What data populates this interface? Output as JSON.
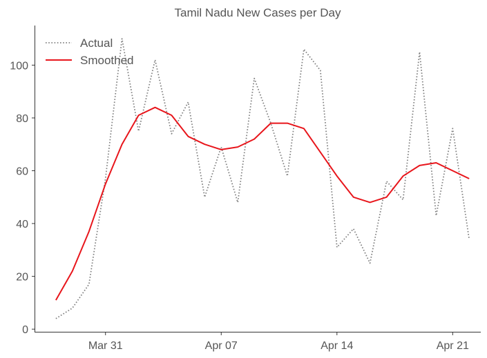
{
  "chart_data": {
    "type": "line",
    "title": "Tamil Nadu New Cases per Day",
    "xlabel": "",
    "ylabel": "",
    "x": [
      "Mar 28",
      "Mar 29",
      "Mar 30",
      "Mar 31",
      "Apr 01",
      "Apr 02",
      "Apr 03",
      "Apr 04",
      "Apr 05",
      "Apr 06",
      "Apr 07",
      "Apr 08",
      "Apr 09",
      "Apr 10",
      "Apr 11",
      "Apr 12",
      "Apr 13",
      "Apr 14",
      "Apr 15",
      "Apr 16",
      "Apr 17",
      "Apr 18",
      "Apr 19",
      "Apr 20",
      "Apr 21",
      "Apr 22"
    ],
    "xticks": [
      {
        "label": "Mar 31",
        "index": 3
      },
      {
        "label": "Apr 07",
        "index": 10
      },
      {
        "label": "Apr 14",
        "index": 17
      },
      {
        "label": "Apr 21",
        "index": 24
      }
    ],
    "yticks": [
      0,
      20,
      40,
      60,
      80,
      100
    ],
    "ylim": [
      -1,
      115
    ],
    "xlim": [
      -1.25,
      25.7
    ],
    "grid": false,
    "legend_position": "top-left",
    "series": [
      {
        "name": "Actual",
        "style": "dotted",
        "color": "#808080",
        "values": [
          4,
          8,
          17,
          57,
          110,
          75,
          102,
          74,
          86,
          50,
          69,
          48,
          95,
          78,
          58,
          106,
          98,
          31,
          38,
          25,
          56,
          49,
          105,
          43,
          76,
          34
        ]
      },
      {
        "name": "Smoothed",
        "style": "solid",
        "color": "#e8151b",
        "values": [
          11,
          22,
          37,
          55,
          70,
          81,
          84,
          81,
          73,
          70,
          68,
          69,
          72,
          78,
          78,
          76,
          67,
          58,
          50,
          48,
          50,
          58,
          62,
          63,
          60,
          57
        ]
      }
    ]
  }
}
